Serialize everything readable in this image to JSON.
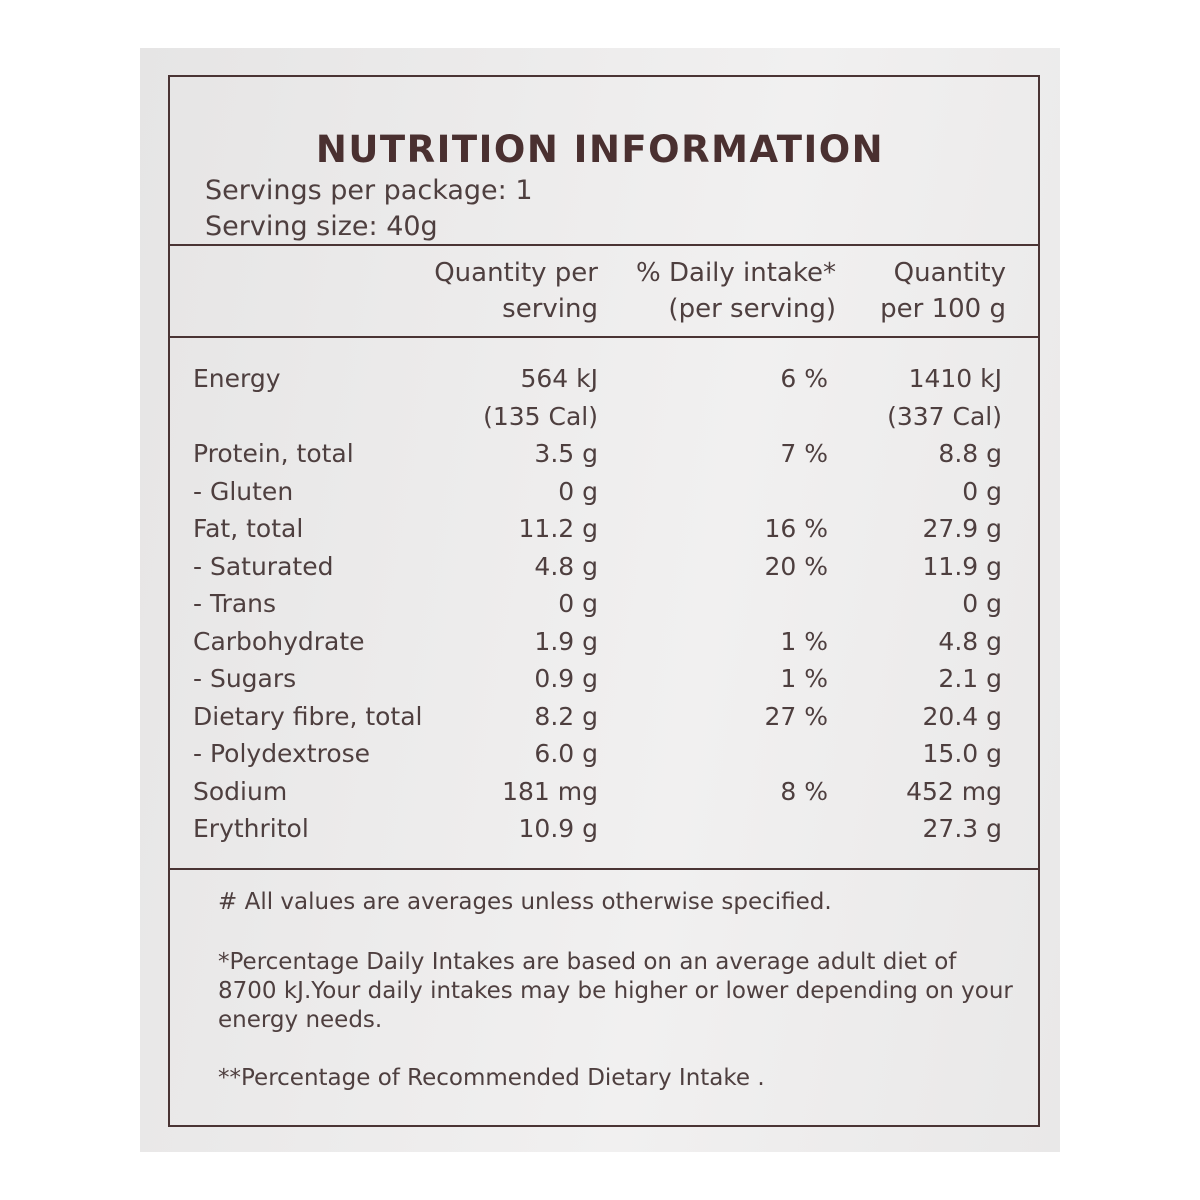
{
  "header": {
    "title": "NUTRITION INFORMATION",
    "servings_per_package": "Servings per package: 1",
    "serving_size": "Serving size: 40g"
  },
  "table": {
    "columns": [
      [
        "Quantity per",
        "serving"
      ],
      [
        "% Daily intake*",
        "(per serving)"
      ],
      [
        "Quantity",
        "per 100 g"
      ]
    ],
    "rows": [
      {
        "name": "Energy",
        "per_serving": [
          "564 kJ",
          "(135 Cal)"
        ],
        "daily_intake": "6 %",
        "per_100g": [
          "1410 kJ",
          "(337 Cal)"
        ]
      },
      {
        "name": "Protein, total",
        "per_serving": [
          "3.5 g"
        ],
        "daily_intake": "7 %",
        "per_100g": [
          "8.8 g"
        ]
      },
      {
        "name": "- Gluten",
        "per_serving": [
          "0 g"
        ],
        "per_100g": [
          "0 g"
        ]
      },
      {
        "name": "Fat, total",
        "per_serving": [
          "11.2 g"
        ],
        "daily_intake": "16 %",
        "per_100g": [
          "27.9 g"
        ]
      },
      {
        "name": "- Saturated",
        "per_serving": [
          "4.8 g"
        ],
        "daily_intake": "20 %",
        "per_100g": [
          "11.9 g"
        ]
      },
      {
        "name": "- Trans",
        "per_serving": [
          "0 g"
        ],
        "per_100g": [
          "0 g"
        ]
      },
      {
        "name": "Carbohydrate",
        "per_serving": [
          "1.9 g"
        ],
        "daily_intake": "1 %",
        "per_100g": [
          "4.8 g"
        ]
      },
      {
        "name": "- Sugars",
        "per_serving": [
          "0.9 g"
        ],
        "daily_intake": "1 %",
        "per_100g": [
          "2.1 g"
        ]
      },
      {
        "name": "Dietary fibre, total",
        "per_serving": [
          "8.2 g"
        ],
        "daily_intake": "27 %",
        "per_100g": [
          "20.4 g"
        ]
      },
      {
        "name": "- Polydextrose",
        "per_serving": [
          "6.0 g"
        ],
        "per_100g": [
          "15.0 g"
        ]
      },
      {
        "name": "Sodium",
        "per_serving": [
          "181 mg"
        ],
        "daily_intake": "8 %",
        "per_100g": [
          "452 mg"
        ]
      },
      {
        "name": "Erythritol",
        "per_serving": [
          "10.9 g"
        ],
        "per_100g": [
          "27.3 g"
        ]
      }
    ]
  },
  "notes": [
    "# All values are averages unless otherwise specified.",
    "*Percentage Daily Intakes are based on an average adult diet of 8700 kJ.Your daily intakes may be higher or lower depending on your energy needs.",
    "**Percentage of Recommended Dietary Intake ."
  ]
}
